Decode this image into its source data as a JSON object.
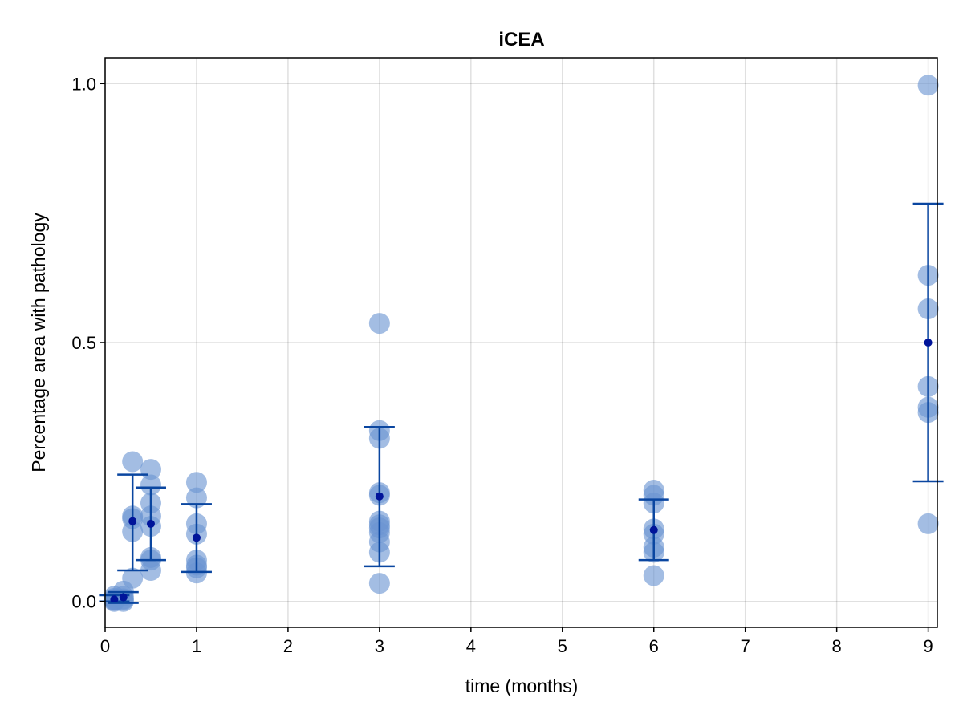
{
  "chart_data": {
    "type": "scatter",
    "title": "iCEA",
    "xlabel": "time (months)",
    "ylabel": "Percentage area with pathology",
    "xlim": [
      0,
      9.1
    ],
    "ylim": [
      -0.05,
      1.05
    ],
    "x_ticks": [
      0,
      1,
      2,
      3,
      4,
      5,
      6,
      7,
      8,
      9
    ],
    "x_tick_labels": [
      "0",
      "1",
      "2",
      "3",
      "4",
      "5",
      "6",
      "7",
      "8",
      "9"
    ],
    "y_ticks": [
      0.0,
      0.5,
      1.0
    ],
    "y_tick_labels": [
      "0.0",
      "0.5",
      "1.0"
    ],
    "grid": true,
    "colors": {
      "points": "#6a95d2",
      "error_bars": "#0a46a0",
      "means": "#00149a"
    },
    "groups": [
      {
        "x": 0.1,
        "points": [
          0.0,
          0.003,
          0.006,
          0.002,
          0.01,
          0.004
        ],
        "mean": 0.004,
        "lower": 0.0,
        "upper": 0.012
      },
      {
        "x": 0.2,
        "points": [
          0.0,
          0.005,
          0.02,
          0.01,
          0.003
        ],
        "mean": 0.008,
        "lower": -0.003,
        "upper": 0.018
      },
      {
        "x": 0.3,
        "points": [
          0.27,
          0.165,
          0.16,
          0.135,
          0.045
        ],
        "mean": 0.155,
        "lower": 0.06,
        "upper": 0.245
      },
      {
        "x": 0.5,
        "points": [
          0.255,
          0.225,
          0.19,
          0.165,
          0.145,
          0.085,
          0.08,
          0.06
        ],
        "mean": 0.15,
        "lower": 0.08,
        "upper": 0.22
      },
      {
        "x": 1.0,
        "points": [
          0.23,
          0.2,
          0.15,
          0.13,
          0.08,
          0.07,
          0.065,
          0.055
        ],
        "mean": 0.123,
        "lower": 0.057,
        "upper": 0.188
      },
      {
        "x": 3.0,
        "points": [
          0.537,
          0.33,
          0.315,
          0.21,
          0.205,
          0.155,
          0.148,
          0.142,
          0.133,
          0.115,
          0.095,
          0.035
        ],
        "mean": 0.203,
        "lower": 0.068,
        "upper": 0.337
      },
      {
        "x": 6.0,
        "points": [
          0.215,
          0.205,
          0.19,
          0.14,
          0.13,
          0.105,
          0.095,
          0.05
        ],
        "mean": 0.138,
        "lower": 0.08,
        "upper": 0.197
      },
      {
        "x": 9.0,
        "points": [
          0.997,
          0.63,
          0.565,
          0.415,
          0.375,
          0.365,
          0.15
        ],
        "mean": 0.5,
        "lower": 0.232,
        "upper": 0.768
      }
    ]
  }
}
